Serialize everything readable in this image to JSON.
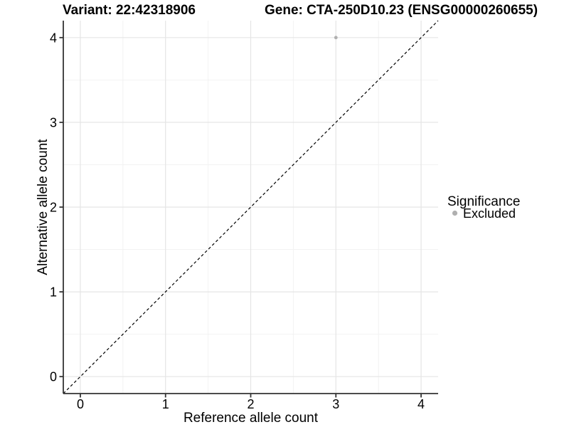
{
  "chart_data": {
    "type": "scatter",
    "title_left": "Variant: 22:42318906",
    "title_right": "Gene: CTA-250D10.23 (ENSG00000260655)",
    "xlabel": "Reference allele count",
    "ylabel": "Alternative allele count",
    "xticks": [
      0,
      1,
      2,
      3,
      4
    ],
    "yticks": [
      0,
      1,
      2,
      3,
      4
    ],
    "xlim": [
      -0.2,
      4.2
    ],
    "ylim": [
      -0.2,
      4.2
    ],
    "grid": "major+minor",
    "legend": {
      "title": "Significance",
      "position": "right"
    },
    "identity_line": {
      "style": "dashed",
      "color": "#000000",
      "from": [
        -0.2,
        -0.2
      ],
      "to": [
        4.2,
        4.2
      ]
    },
    "series": [
      {
        "name": "Excluded",
        "color": "#b0b0b0",
        "points": [
          {
            "x": 3,
            "y": 4
          }
        ]
      }
    ],
    "colors": {
      "major_grid": "#e5e5e5",
      "minor_grid": "#f2f2f2",
      "axis": "#333333",
      "text": "#000000",
      "background": "#ffffff"
    }
  }
}
